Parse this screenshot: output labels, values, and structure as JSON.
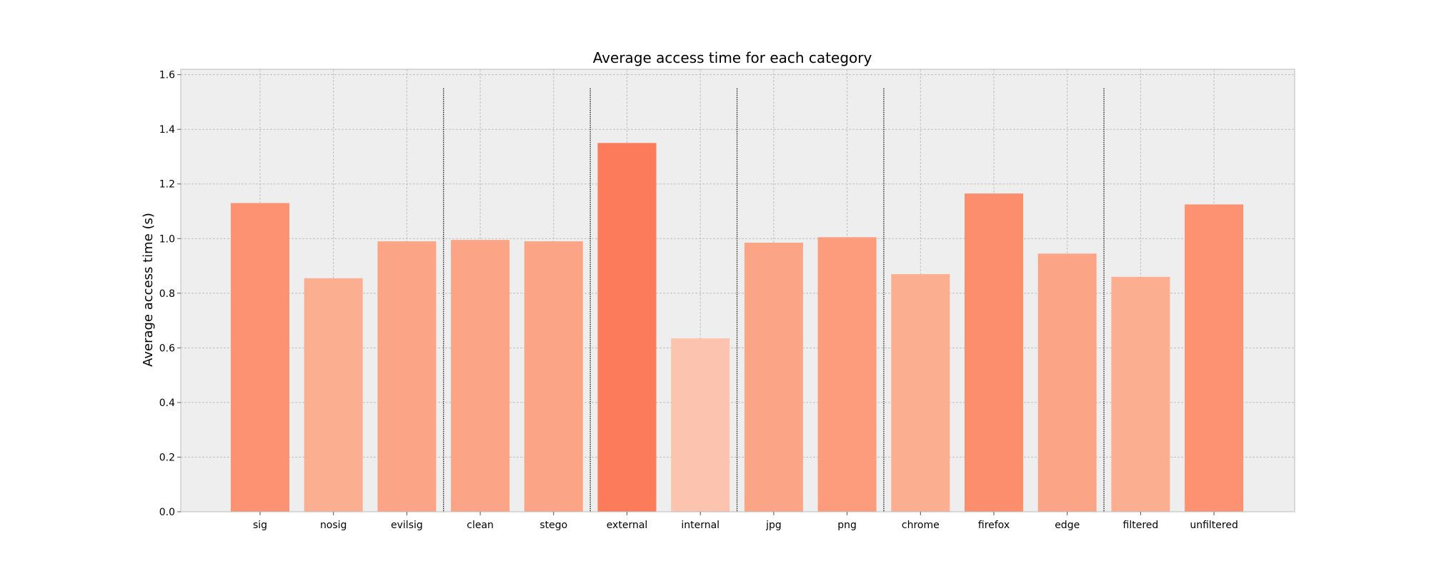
{
  "chart_data": {
    "type": "bar",
    "title": "Average access time for each category",
    "xlabel": "",
    "ylabel": "Average access time (s)",
    "ylim": [
      0,
      1.62
    ],
    "yticks": [
      0.0,
      0.2,
      0.4,
      0.6,
      0.8,
      1.0,
      1.2,
      1.4,
      1.6
    ],
    "ytick_labels": [
      "0.0",
      "0.2",
      "0.4",
      "0.6",
      "0.8",
      "1.0",
      "1.2",
      "1.4",
      "1.6"
    ],
    "grid": true,
    "categories": [
      "sig",
      "nosig",
      "evilsig",
      "clean",
      "stego",
      "external",
      "internal",
      "jpg",
      "png",
      "chrome",
      "firefox",
      "edge",
      "filtered",
      "unfiltered"
    ],
    "values": [
      1.13,
      0.855,
      0.99,
      0.995,
      0.99,
      1.35,
      0.635,
      0.985,
      1.005,
      0.87,
      1.165,
      0.945,
      0.86,
      1.125
    ],
    "bar_colors": [
      "#fc9272",
      "#fcae91",
      "#fca486",
      "#fca486",
      "#fca486",
      "#fb7b5b",
      "#fcc4af",
      "#fca486",
      "#fc9c7c",
      "#fcae91",
      "#fc8e6e",
      "#fca486",
      "#fcae91",
      "#fc9272"
    ],
    "group_separators_after_index": [
      2,
      4,
      6,
      8,
      11
    ],
    "separator_top_value": 1.55,
    "colors": {
      "plot_background": "#eeeeee",
      "grid": "#bfbfbf",
      "frame": "#bcbcbc",
      "separator": "#000000"
    }
  }
}
